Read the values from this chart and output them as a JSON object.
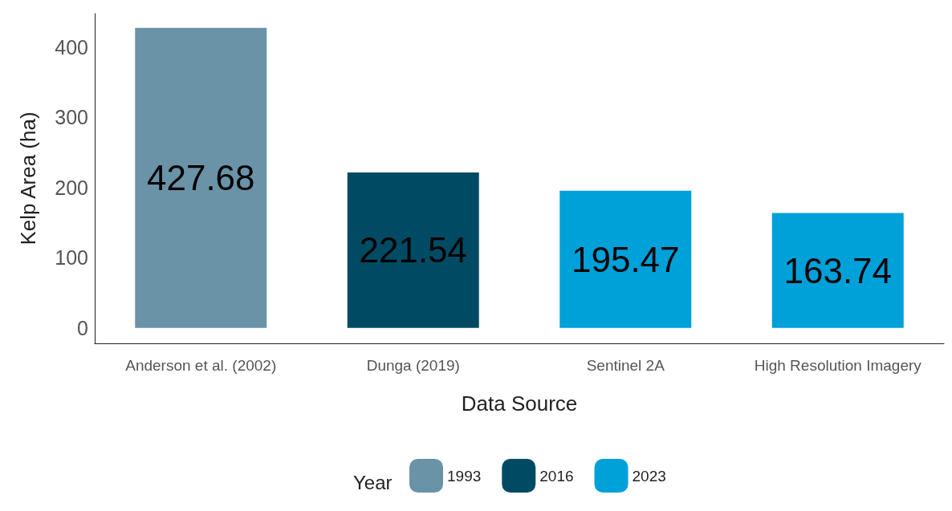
{
  "chart_data": {
    "type": "bar",
    "xlabel": "Data Source",
    "ylabel": "Kelp Area (ha)",
    "legend_title": "Year",
    "categories": [
      "Anderson et al. (2002)",
      "Dunga (2019)",
      "Sentinel 2A",
      "High Resolution Imagery"
    ],
    "series": [
      {
        "name": "1993",
        "color": "#6a93a8",
        "values": [
          427.68,
          null,
          null,
          null
        ]
      },
      {
        "name": "2016",
        "color": "#004b63",
        "values": [
          null,
          221.54,
          null,
          null
        ]
      },
      {
        "name": "2023",
        "color": "#00a0d8",
        "values": [
          null,
          null,
          195.47,
          163.74
        ]
      }
    ],
    "stacked": true,
    "ylim": [
      -22,
      448
    ],
    "yticks": [
      0,
      100,
      200,
      300,
      400
    ],
    "grid": false,
    "legend": "bottom",
    "data_labels": true
  }
}
